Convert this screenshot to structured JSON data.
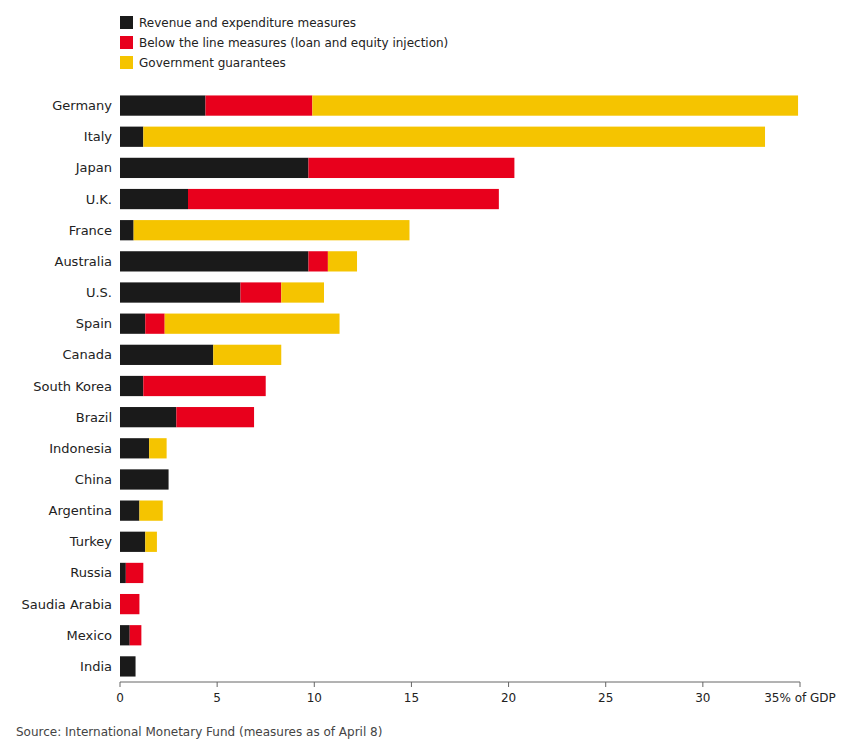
{
  "chart_data": {
    "type": "bar",
    "orientation": "horizontal",
    "stacked": true,
    "grid": false,
    "legend": "top",
    "categories": [
      "Germany",
      "Italy",
      "Japan",
      "U.K.",
      "France",
      "Australia",
      "U.S.",
      "Spain",
      "Canada",
      "South Korea",
      "Brazil",
      "Indonesia",
      "China",
      "Argentina",
      "Turkey",
      "Russia",
      "Saudia Arabia",
      "Mexico",
      "India"
    ],
    "series": [
      {
        "name": "Revenue and expenditure measures",
        "color": "#1a1a1a",
        "values": [
          4.4,
          1.2,
          9.7,
          3.5,
          0.7,
          9.7,
          6.2,
          1.3,
          4.8,
          1.2,
          2.9,
          1.5,
          2.5,
          1.0,
          1.3,
          0.3,
          0.0,
          0.5,
          0.8
        ]
      },
      {
        "name": "Below the line measures (loan and equity injection)",
        "color": "#e8001c",
        "values": [
          5.5,
          0.0,
          10.6,
          16.0,
          0.0,
          1.0,
          2.1,
          1.0,
          0.0,
          6.3,
          4.0,
          0.0,
          0.0,
          0.0,
          0.0,
          0.9,
          1.0,
          0.6,
          0.0
        ]
      },
      {
        "name": "Government guarantees",
        "color": "#f5c400",
        "values": [
          25.0,
          32.0,
          0.0,
          0.0,
          14.2,
          1.5,
          2.2,
          9.0,
          3.5,
          0.0,
          0.0,
          0.9,
          0.0,
          1.2,
          0.6,
          0.0,
          0.0,
          0.0,
          0.0
        ]
      }
    ],
    "xlim": [
      0,
      35
    ],
    "xticks": [
      0,
      5,
      10,
      15,
      20,
      25,
      30,
      {
        "value": 35,
        "label": "35% of GDP"
      }
    ],
    "source": "Source: International Monetary Fund (measures as of April 8)"
  }
}
